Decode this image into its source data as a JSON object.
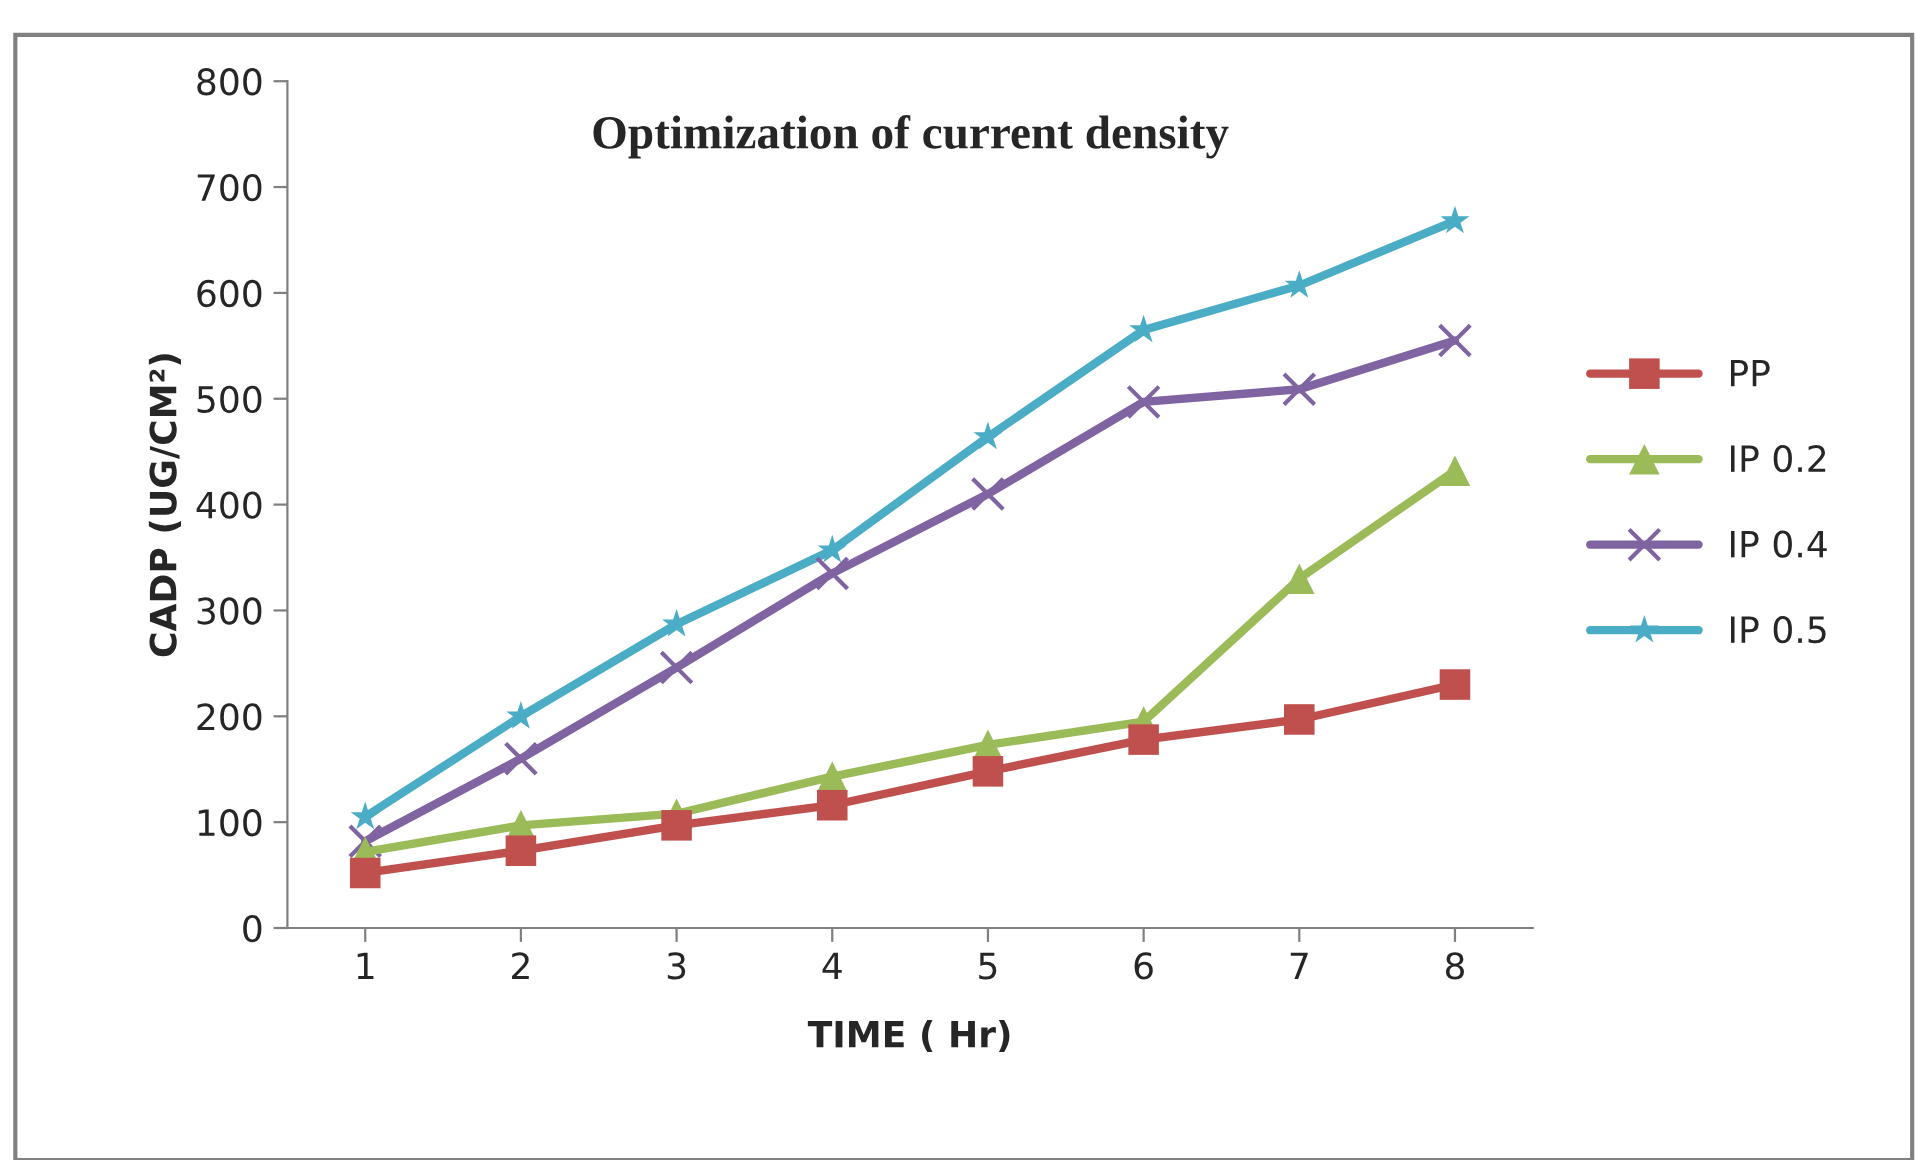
{
  "chart_data": {
    "type": "line",
    "title": "Optimization of current density",
    "xlabel": "TIME ( Hr)",
    "ylabel": "CADP (UG/CM²)",
    "categories": [
      "1",
      "2",
      "3",
      "4",
      "5",
      "6",
      "7",
      "8"
    ],
    "series": [
      {
        "name": "PP",
        "color": "#c0504d",
        "marker": "square",
        "values": [
          52,
          73,
          97,
          116,
          148,
          178,
          197,
          230
        ]
      },
      {
        "name": "IP 0.2",
        "color": "#9bbb59",
        "marker": "triangle",
        "values": [
          72,
          97,
          108,
          143,
          173,
          195,
          330,
          432
        ]
      },
      {
        "name": "IP 0.4",
        "color": "#8064a2",
        "marker": "cross",
        "values": [
          82,
          160,
          246,
          335,
          410,
          497,
          509,
          555
        ]
      },
      {
        "name": "IP 0.5",
        "color": "#4bacc6",
        "marker": "star",
        "values": [
          105,
          200,
          287,
          357,
          464,
          565,
          607,
          668
        ]
      }
    ],
    "ylim": [
      0,
      800
    ],
    "yticks": [
      0,
      100,
      200,
      300,
      400,
      500,
      600,
      700,
      800
    ],
    "grid": false,
    "legend": "right"
  }
}
